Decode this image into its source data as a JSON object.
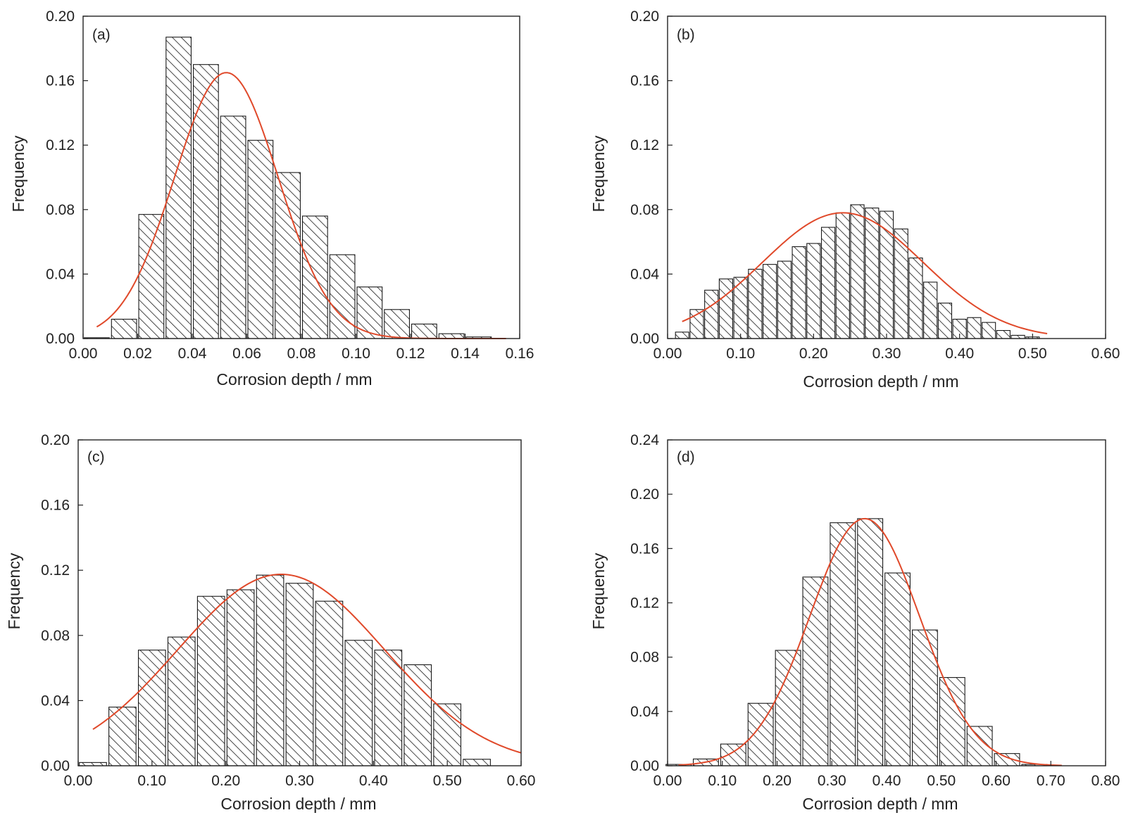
{
  "chart_data": [
    {
      "type": "bar",
      "panel_label": "(a)",
      "xlabel": "Corrosion depth / mm",
      "ylabel": "Frequency",
      "xlim": [
        0,
        0.16
      ],
      "ylim": [
        0,
        0.2
      ],
      "xticks": [
        "0.00",
        "0.02",
        "0.04",
        "0.06",
        "0.08",
        "0.10",
        "0.12",
        "0.14",
        "0.16"
      ],
      "yticks": [
        "0.00",
        "0.04",
        "0.08",
        "0.12",
        "0.16",
        "0.20"
      ],
      "bin_width": 0.01,
      "bins": [
        {
          "x": 0.005,
          "value": 0.0005
        },
        {
          "x": 0.015,
          "value": 0.012
        },
        {
          "x": 0.025,
          "value": 0.077
        },
        {
          "x": 0.035,
          "value": 0.187
        },
        {
          "x": 0.045,
          "value": 0.17
        },
        {
          "x": 0.055,
          "value": 0.138
        },
        {
          "x": 0.065,
          "value": 0.123
        },
        {
          "x": 0.075,
          "value": 0.103
        },
        {
          "x": 0.085,
          "value": 0.076
        },
        {
          "x": 0.095,
          "value": 0.052
        },
        {
          "x": 0.105,
          "value": 0.032
        },
        {
          "x": 0.115,
          "value": 0.018
        },
        {
          "x": 0.125,
          "value": 0.009
        },
        {
          "x": 0.135,
          "value": 0.003
        },
        {
          "x": 0.145,
          "value": 0.001
        }
      ],
      "fit": {
        "type": "normal",
        "mean": 0.0525,
        "peak": 0.165,
        "sd": 0.019,
        "x_range": [
          0.005,
          0.155
        ]
      },
      "grid": false,
      "colors": {
        "bars_hatch": "#1a1a1a",
        "fit_line": "#e0492a"
      }
    },
    {
      "type": "bar",
      "panel_label": "(b)",
      "xlabel": "Corrosion depth / mm",
      "ylabel": "Frequency",
      "xlim": [
        0,
        0.6
      ],
      "ylim": [
        0,
        0.2
      ],
      "xticks": [
        "0.00",
        "0.10",
        "0.20",
        "0.30",
        "0.40",
        "0.50",
        "0.60"
      ],
      "yticks": [
        "0.00",
        "0.04",
        "0.08",
        "0.12",
        "0.16",
        "0.20"
      ],
      "bin_width": 0.02,
      "bins": [
        {
          "x": 0.02,
          "value": 0.004
        },
        {
          "x": 0.04,
          "value": 0.018
        },
        {
          "x": 0.06,
          "value": 0.03
        },
        {
          "x": 0.08,
          "value": 0.037
        },
        {
          "x": 0.1,
          "value": 0.038
        },
        {
          "x": 0.12,
          "value": 0.043
        },
        {
          "x": 0.14,
          "value": 0.046
        },
        {
          "x": 0.16,
          "value": 0.048
        },
        {
          "x": 0.18,
          "value": 0.057
        },
        {
          "x": 0.2,
          "value": 0.059
        },
        {
          "x": 0.22,
          "value": 0.069
        },
        {
          "x": 0.24,
          "value": 0.078
        },
        {
          "x": 0.26,
          "value": 0.083
        },
        {
          "x": 0.28,
          "value": 0.081
        },
        {
          "x": 0.3,
          "value": 0.079
        },
        {
          "x": 0.32,
          "value": 0.068
        },
        {
          "x": 0.34,
          "value": 0.05
        },
        {
          "x": 0.36,
          "value": 0.035
        },
        {
          "x": 0.38,
          "value": 0.022
        },
        {
          "x": 0.4,
          "value": 0.012
        },
        {
          "x": 0.42,
          "value": 0.013
        },
        {
          "x": 0.44,
          "value": 0.01
        },
        {
          "x": 0.46,
          "value": 0.005
        },
        {
          "x": 0.48,
          "value": 0.002
        },
        {
          "x": 0.5,
          "value": 0.001
        }
      ],
      "fit": {
        "type": "normal",
        "mean": 0.24,
        "peak": 0.078,
        "sd": 0.11,
        "x_range": [
          0.02,
          0.52
        ]
      },
      "grid": false,
      "colors": {
        "bars_hatch": "#1a1a1a",
        "fit_line": "#e0492a"
      }
    },
    {
      "type": "bar",
      "panel_label": "(c)",
      "xlabel": "Corrosion depth / mm",
      "ylabel": "Frequency",
      "xlim": [
        0,
        0.6
      ],
      "ylim": [
        0,
        0.2
      ],
      "xticks": [
        "0.00",
        "0.10",
        "0.20",
        "0.30",
        "0.40",
        "0.50",
        "0.60"
      ],
      "yticks": [
        "0.00",
        "0.04",
        "0.08",
        "0.12",
        "0.16",
        "0.20"
      ],
      "bin_width": 0.04,
      "bins": [
        {
          "x": 0.02,
          "value": 0.002
        },
        {
          "x": 0.06,
          "value": 0.036
        },
        {
          "x": 0.1,
          "value": 0.071
        },
        {
          "x": 0.14,
          "value": 0.079
        },
        {
          "x": 0.18,
          "value": 0.104
        },
        {
          "x": 0.22,
          "value": 0.108
        },
        {
          "x": 0.26,
          "value": 0.117
        },
        {
          "x": 0.3,
          "value": 0.112
        },
        {
          "x": 0.34,
          "value": 0.101
        },
        {
          "x": 0.38,
          "value": 0.077
        },
        {
          "x": 0.42,
          "value": 0.071
        },
        {
          "x": 0.46,
          "value": 0.062
        },
        {
          "x": 0.5,
          "value": 0.038
        },
        {
          "x": 0.54,
          "value": 0.004
        }
      ],
      "fit": {
        "type": "normal",
        "mean": 0.275,
        "peak": 0.1175,
        "sd": 0.14,
        "x_range": [
          0.02,
          0.6
        ]
      },
      "grid": false,
      "colors": {
        "bars_hatch": "#1a1a1a",
        "fit_line": "#e0492a"
      }
    },
    {
      "type": "bar",
      "panel_label": "(d)",
      "xlabel": "Corrosion depth / mm",
      "ylabel": "Frequency",
      "xlim": [
        0,
        0.8
      ],
      "ylim": [
        0,
        0.24
      ],
      "xticks": [
        "0.00",
        "0.10",
        "0.20",
        "0.30",
        "0.40",
        "0.50",
        "0.60",
        "0.70",
        "0.80"
      ],
      "yticks": [
        "0.00",
        "0.04",
        "0.08",
        "0.12",
        "0.16",
        "0.20",
        "0.24"
      ],
      "bin_width": 0.05,
      "bins": [
        {
          "x": 0.02,
          "value": 0.001
        },
        {
          "x": 0.07,
          "value": 0.005
        },
        {
          "x": 0.12,
          "value": 0.016
        },
        {
          "x": 0.17,
          "value": 0.046
        },
        {
          "x": 0.22,
          "value": 0.085
        },
        {
          "x": 0.27,
          "value": 0.139
        },
        {
          "x": 0.32,
          "value": 0.179
        },
        {
          "x": 0.37,
          "value": 0.182
        },
        {
          "x": 0.42,
          "value": 0.142
        },
        {
          "x": 0.47,
          "value": 0.1
        },
        {
          "x": 0.52,
          "value": 0.065
        },
        {
          "x": 0.57,
          "value": 0.029
        },
        {
          "x": 0.62,
          "value": 0.009
        },
        {
          "x": 0.67,
          "value": 0.001
        }
      ],
      "fit": {
        "type": "normal",
        "mean": 0.36,
        "peak": 0.182,
        "sd": 0.1,
        "x_range": [
          0.02,
          0.72
        ]
      },
      "grid": false,
      "colors": {
        "bars_hatch": "#1a1a1a",
        "fit_line": "#e0492a"
      }
    }
  ]
}
